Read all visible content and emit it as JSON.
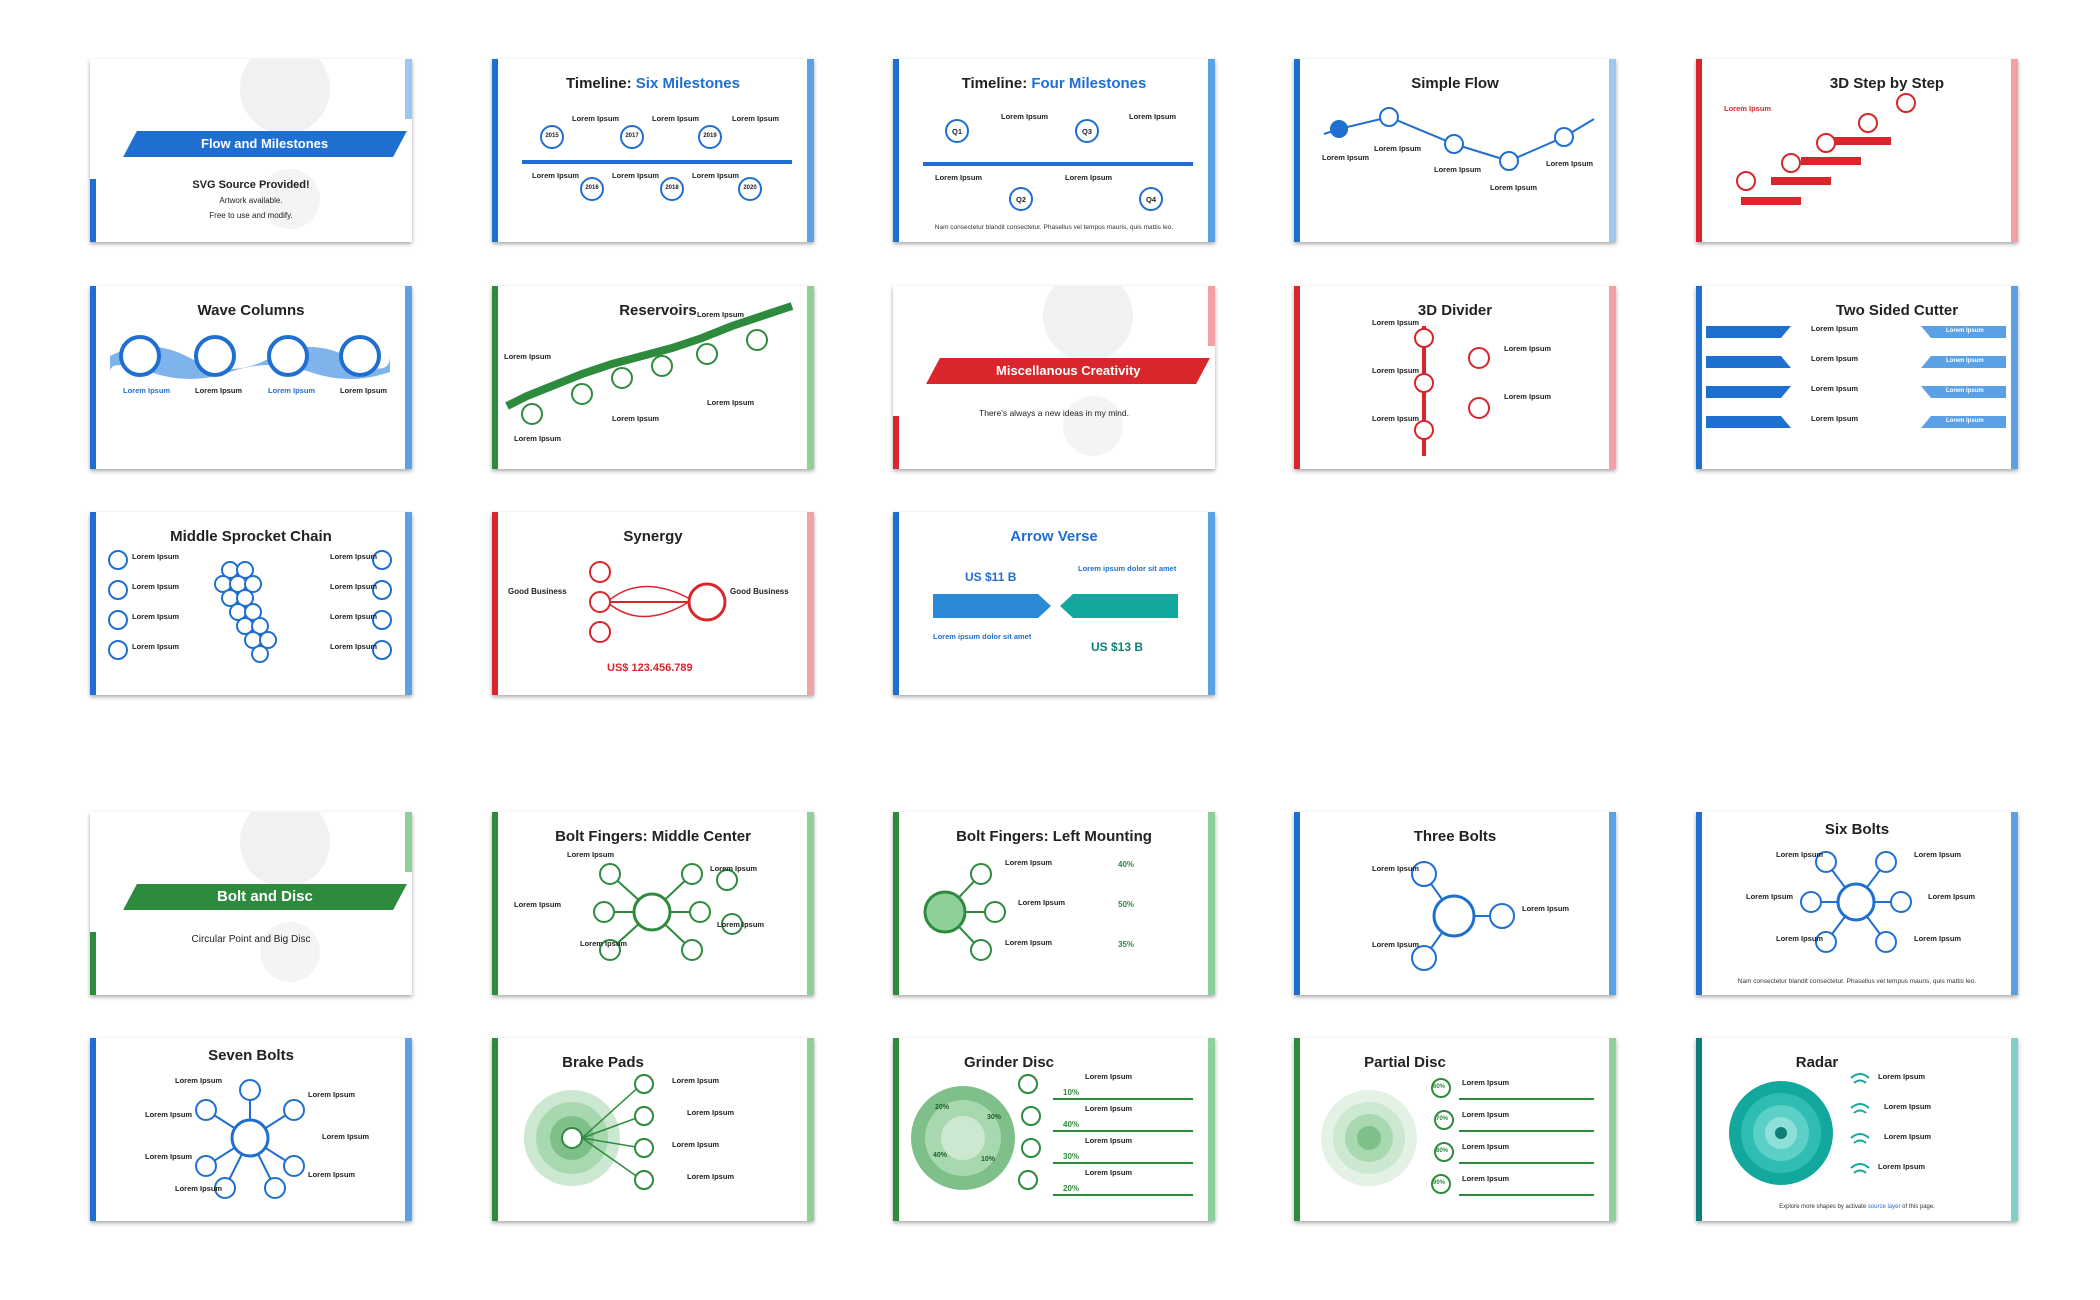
{
  "colors": {
    "blue": "#1f6fd0",
    "green": "#2e8b3e",
    "red": "#d9262c",
    "teal": "#13a89e"
  },
  "common": {
    "lorem": "Lorem Ipsum",
    "nam": "Nam consectetur blandit consectetur. Phasellus vel tempus mauris, quis mattis leo."
  },
  "slides": {
    "flow_milestones": {
      "title": "Flow and Milestones",
      "sub1": "SVG Source Provided!",
      "sub2": "Artwork available.",
      "sub3": "Free to use and modify."
    },
    "six_milestones": {
      "title_a": "Timeline: ",
      "title_b": "Six Milestones",
      "years": [
        "2015",
        "2016",
        "2017",
        "2018",
        "2019",
        "2020"
      ]
    },
    "four_milestones": {
      "title_a": "Timeline: ",
      "title_b": "Four Milestones",
      "quarters": [
        "Q1",
        "Q2",
        "Q3",
        "Q4"
      ]
    },
    "simple_flow": {
      "title": "Simple Flow"
    },
    "step_by_step": {
      "title": "3D Step by Step"
    },
    "wave_columns": {
      "title": "Wave Columns"
    },
    "reservoirs": {
      "title": "Reservoirs"
    },
    "misc_creativity": {
      "title": "Miscellanous Creativity",
      "sub": "There's always a new ideas in my mind."
    },
    "divider_3d": {
      "title": "3D Divider"
    },
    "two_sided_cutter": {
      "title": "Two Sided Cutter"
    },
    "sprocket_chain": {
      "title": "Middle Sprocket Chain"
    },
    "synergy": {
      "title": "Synergy",
      "left_label": "Good Business",
      "right_label": "Good Business",
      "amount": "US$ 123.456.789"
    },
    "arrow_verse": {
      "title": "Arrow Verse",
      "left_value": "US $11 B",
      "right_value": "US $13 B",
      "left_label": "Lorem ipsum dolor sit amet",
      "right_label": "Lorem ipsum dolor sit amet"
    },
    "bolt_disc": {
      "title": "Bolt and Disc",
      "sub": "Circular Point and Big Disc"
    },
    "bolt_middle": {
      "title": "Bolt Fingers: Middle Center"
    },
    "bolt_left": {
      "title": "Bolt Fingers: Left Mounting",
      "percents": [
        "40%",
        "50%",
        "35%"
      ]
    },
    "three_bolts": {
      "title": "Three Bolts"
    },
    "six_bolts": {
      "title": "Six Bolts"
    },
    "seven_bolts": {
      "title": "Seven Bolts"
    },
    "brake_pads": {
      "title": "Brake Pads"
    },
    "grinder_disc": {
      "title": "Grinder Disc",
      "ring_labels": [
        "20%",
        "30%",
        "40%",
        "10%"
      ],
      "percents": [
        "10%",
        "40%",
        "30%",
        "20%"
      ]
    },
    "partial_disc": {
      "title": "Partial Disc",
      "percents": [
        "60%",
        "70%",
        "80%",
        "90%"
      ]
    },
    "radar": {
      "title": "Radar",
      "footer_a": "Explore more shapes by activate ",
      "footer_b": "source layer",
      "footer_c": " of this page."
    }
  }
}
